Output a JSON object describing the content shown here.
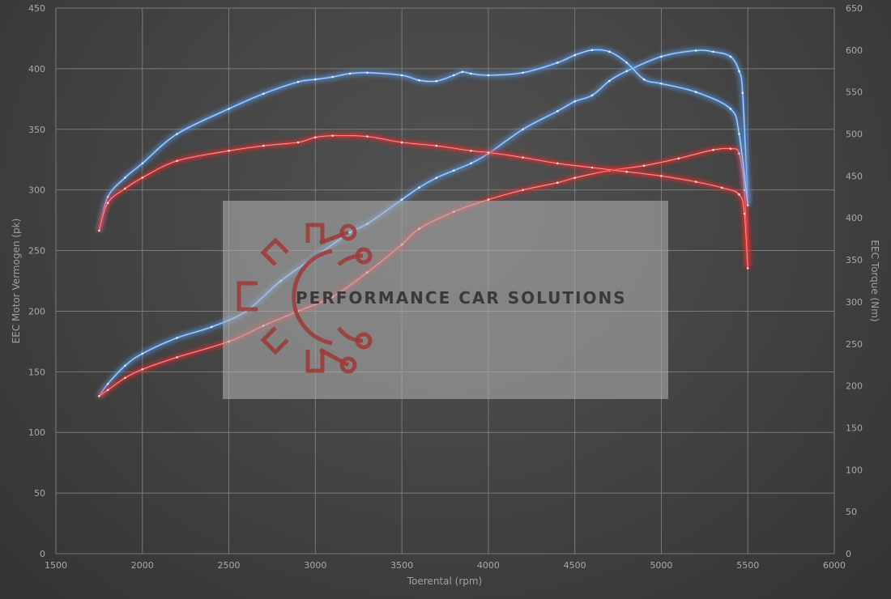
{
  "chart_data": {
    "type": "line",
    "title": "",
    "xlabel": "Toerental (rpm)",
    "ylabel_left": "EEC Motor Vermogen (pk)",
    "ylabel_right": "EEC Torque (Nm)",
    "xlim": [
      1500,
      6000
    ],
    "ylim_left": [
      0,
      450
    ],
    "ylim_right": [
      0,
      650
    ],
    "x_ticks": [
      1500,
      2000,
      2500,
      3000,
      3500,
      4000,
      4500,
      5000,
      5500,
      6000
    ],
    "y_ticks_left": [
      0,
      50,
      100,
      150,
      200,
      250,
      300,
      350,
      400,
      450
    ],
    "y_ticks_right": [
      0,
      50,
      100,
      150,
      200,
      250,
      300,
      350,
      400,
      450,
      500,
      550,
      600,
      650
    ],
    "grid": true,
    "legend": "none",
    "series": [
      {
        "color": "#5b9be8",
        "axis": "left",
        "x": [
          1750,
          1800,
          1900,
          2000,
          2200,
          2400,
          2600,
          2800,
          3000,
          3200,
          3300,
          3500,
          3600,
          3700,
          3800,
          3900,
          4000,
          4200,
          4400,
          4500,
          4600,
          4700,
          4800,
          5000,
          5200,
          5300,
          5400,
          5450,
          5470,
          5500
        ],
        "values": [
          130,
          140,
          155,
          165,
          178,
          187,
          200,
          225,
          245,
          265,
          272,
          292,
          302,
          310,
          316,
          322,
          330,
          350,
          365,
          373,
          378,
          390,
          398,
          410,
          415,
          414,
          410,
          398,
          380,
          290
        ]
      },
      {
        "color": "#e23434",
        "axis": "left",
        "x": [
          1750,
          1800,
          1900,
          2000,
          2200,
          2500,
          2700,
          2900,
          3100,
          3300,
          3500,
          3600,
          3800,
          4000,
          4200,
          4400,
          4500,
          4700,
          4900,
          5100,
          5300,
          5400,
          5450,
          5480,
          5500
        ],
        "values": [
          130,
          135,
          145,
          152,
          162,
          175,
          188,
          200,
          212,
          232,
          255,
          268,
          282,
          292,
          300,
          306,
          310,
          316,
          320,
          326,
          333,
          334,
          330,
          300,
          238
        ]
      },
      {
        "color": "#5b9be8",
        "axis": "right",
        "x": [
          1750,
          1800,
          1900,
          2000,
          2200,
          2500,
          2700,
          2900,
          3000,
          3100,
          3200,
          3300,
          3500,
          3600,
          3700,
          3800,
          3850,
          3900,
          4000,
          4200,
          4400,
          4500,
          4600,
          4700,
          4800,
          4900,
          5000,
          5200,
          5400,
          5450,
          5500
        ],
        "values": [
          385,
          425,
          448,
          465,
          500,
          530,
          548,
          562,
          565,
          568,
          572,
          573,
          570,
          564,
          563,
          570,
          574,
          572,
          570,
          573,
          585,
          594,
          600,
          598,
          585,
          565,
          560,
          550,
          530,
          500,
          415
        ]
      },
      {
        "color": "#e23434",
        "axis": "right",
        "x": [
          1750,
          1800,
          1900,
          2000,
          2200,
          2500,
          2700,
          2900,
          3000,
          3100,
          3300,
          3500,
          3700,
          3900,
          4000,
          4200,
          4400,
          4600,
          4800,
          5000,
          5200,
          5350,
          5450,
          5480,
          5500
        ],
        "values": [
          385,
          418,
          435,
          448,
          468,
          480,
          486,
          490,
          496,
          498,
          497,
          490,
          486,
          480,
          478,
          472,
          465,
          460,
          455,
          450,
          443,
          436,
          428,
          405,
          340
        ]
      }
    ]
  },
  "watermark": {
    "brand": "PERFORMANCE CAR SOLUTIONS",
    "logo_icon": "gear-circuit-icon",
    "logo_color": "#9e3a36"
  }
}
